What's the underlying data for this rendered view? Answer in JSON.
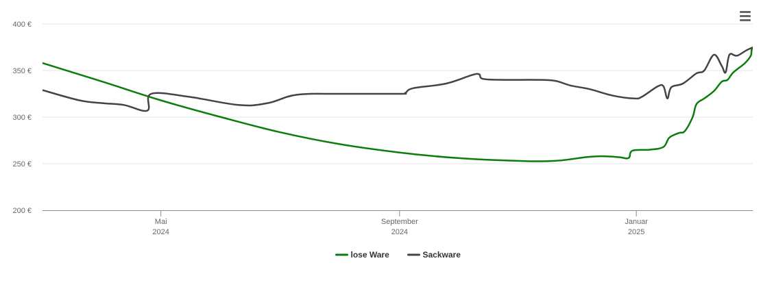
{
  "chart_data": {
    "type": "line",
    "title": "",
    "xlabel": "",
    "ylabel": "",
    "ylim": [
      200,
      400
    ],
    "y_ticks": [
      {
        "value": 200,
        "label": "200 €"
      },
      {
        "value": 250,
        "label": "250 €"
      },
      {
        "value": 300,
        "label": "300 €"
      },
      {
        "value": 350,
        "label": "350 €"
      },
      {
        "value": 400,
        "label": "400 €"
      }
    ],
    "x_range": [
      "2024-03-01",
      "2025-03-02"
    ],
    "x_ticks": [
      {
        "date": "2024-05-01",
        "month": "Mai",
        "year": "2024"
      },
      {
        "date": "2024-09-01",
        "month": "September",
        "year": "2024"
      },
      {
        "date": "2025-01-01",
        "month": "Januar",
        "year": "2025"
      }
    ],
    "grid": "horizontal",
    "legend_position": "bottom-center",
    "series": [
      {
        "name": "lose Ware",
        "color": "#0a7d0a",
        "points": [
          [
            "2024-03-01",
            358
          ],
          [
            "2024-04-01",
            338
          ],
          [
            "2024-05-01",
            318
          ],
          [
            "2024-06-01",
            300
          ],
          [
            "2024-07-01",
            284
          ],
          [
            "2024-08-01",
            271
          ],
          [
            "2024-09-01",
            262
          ],
          [
            "2024-10-01",
            256
          ],
          [
            "2024-11-01",
            253
          ],
          [
            "2024-11-20",
            253
          ],
          [
            "2024-12-06",
            257
          ],
          [
            "2024-12-14",
            258
          ],
          [
            "2024-12-23",
            257
          ],
          [
            "2024-12-28",
            256
          ],
          [
            "2024-12-30",
            264
          ],
          [
            "2025-01-08",
            265
          ],
          [
            "2025-01-15",
            268
          ],
          [
            "2025-01-18",
            278
          ],
          [
            "2025-01-23",
            283
          ],
          [
            "2025-01-26",
            285
          ],
          [
            "2025-01-30",
            300
          ],
          [
            "2025-02-01",
            314
          ],
          [
            "2025-02-05",
            320
          ],
          [
            "2025-02-10",
            328
          ],
          [
            "2025-02-14",
            338
          ],
          [
            "2025-02-17",
            340
          ],
          [
            "2025-02-20",
            348
          ],
          [
            "2025-02-26",
            358
          ],
          [
            "2025-03-01",
            366
          ],
          [
            "2025-03-02",
            374
          ],
          [
            "2025-03-08",
            374
          ],
          [
            "2025-03-14",
            373
          ]
        ]
      },
      {
        "name": "Sackware",
        "color": "#434348",
        "points": [
          [
            "2024-03-01",
            329
          ],
          [
            "2024-03-20",
            318
          ],
          [
            "2024-04-01",
            315
          ],
          [
            "2024-04-12",
            313
          ],
          [
            "2024-04-24",
            307
          ],
          [
            "2024-04-26",
            325
          ],
          [
            "2024-05-15",
            322
          ],
          [
            "2024-06-10",
            313
          ],
          [
            "2024-06-25",
            315
          ],
          [
            "2024-07-10",
            324
          ],
          [
            "2024-08-01",
            325
          ],
          [
            "2024-09-01",
            325
          ],
          [
            "2024-09-04",
            326
          ],
          [
            "2024-09-08",
            331
          ],
          [
            "2024-09-25",
            336
          ],
          [
            "2024-10-08",
            345
          ],
          [
            "2024-10-12",
            346
          ],
          [
            "2024-10-14",
            341
          ],
          [
            "2024-10-25",
            340
          ],
          [
            "2024-11-10",
            340
          ],
          [
            "2024-11-20",
            339
          ],
          [
            "2024-11-28",
            334
          ],
          [
            "2024-12-08",
            330
          ],
          [
            "2024-12-20",
            323
          ],
          [
            "2024-12-31",
            320
          ],
          [
            "2025-01-04",
            322
          ],
          [
            "2025-01-12",
            333
          ],
          [
            "2025-01-15",
            333
          ],
          [
            "2025-01-17",
            320
          ],
          [
            "2025-01-19",
            332
          ],
          [
            "2025-01-25",
            336
          ],
          [
            "2025-02-01",
            347
          ],
          [
            "2025-02-05",
            350
          ],
          [
            "2025-02-10",
            367
          ],
          [
            "2025-02-14",
            355
          ],
          [
            "2025-02-16",
            348
          ],
          [
            "2025-02-18",
            367
          ],
          [
            "2025-02-22",
            366
          ],
          [
            "2025-03-01",
            374
          ],
          [
            "2025-03-16",
            385
          ]
        ]
      }
    ]
  },
  "menu": {
    "icon": "hamburger-menu-icon"
  }
}
